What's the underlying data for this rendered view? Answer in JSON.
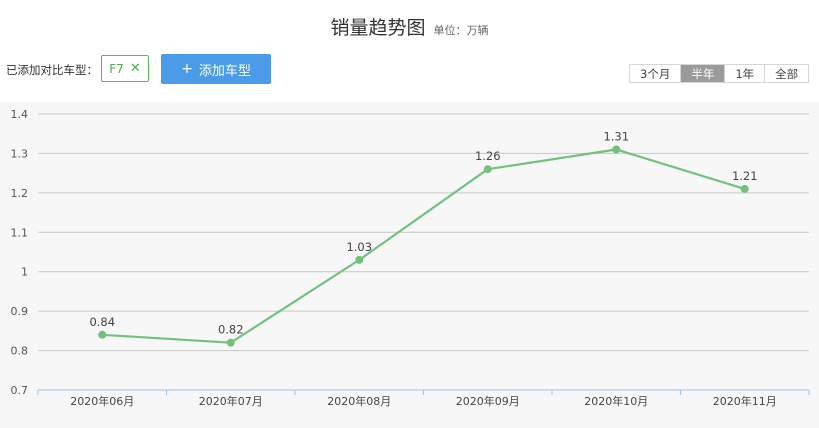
{
  "title": "销量趋势图",
  "unit": "单位：万辆",
  "added_label": "已添加对比车型：",
  "chips": [
    {
      "label": "F7"
    }
  ],
  "add_button": {
    "plus": "+",
    "label": "添加车型"
  },
  "range_tabs": [
    {
      "label": "3个月",
      "active": false
    },
    {
      "label": "半年",
      "active": true
    },
    {
      "label": "1年",
      "active": false
    },
    {
      "label": "全部",
      "active": false
    }
  ],
  "chart_data": {
    "type": "line",
    "categories": [
      "2020年06月",
      "2020年07月",
      "2020年08月",
      "2020年09月",
      "2020年10月",
      "2020年11月"
    ],
    "series": [
      {
        "values": [
          0.84,
          0.82,
          1.03,
          1.26,
          1.31,
          1.21
        ],
        "color": "#72c17e"
      }
    ],
    "data_labels": [
      "0.84",
      "0.82",
      "1.03",
      "1.26",
      "1.31",
      "1.21"
    ],
    "yticks": [
      0.7,
      0.8,
      0.9,
      1.0,
      1.1,
      1.2,
      1.3,
      1.4
    ],
    "ytick_labels": [
      "0.7",
      "0.8",
      "0.9",
      "1",
      "1.1",
      "1.2",
      "1.3",
      "1.4"
    ],
    "ylim": [
      0.7,
      1.4
    ],
    "grid": true,
    "colors": {
      "grid": "#c8c8c8",
      "axis": "#9ac3e6",
      "line": "#72c17e",
      "point": "#72c17e"
    }
  }
}
